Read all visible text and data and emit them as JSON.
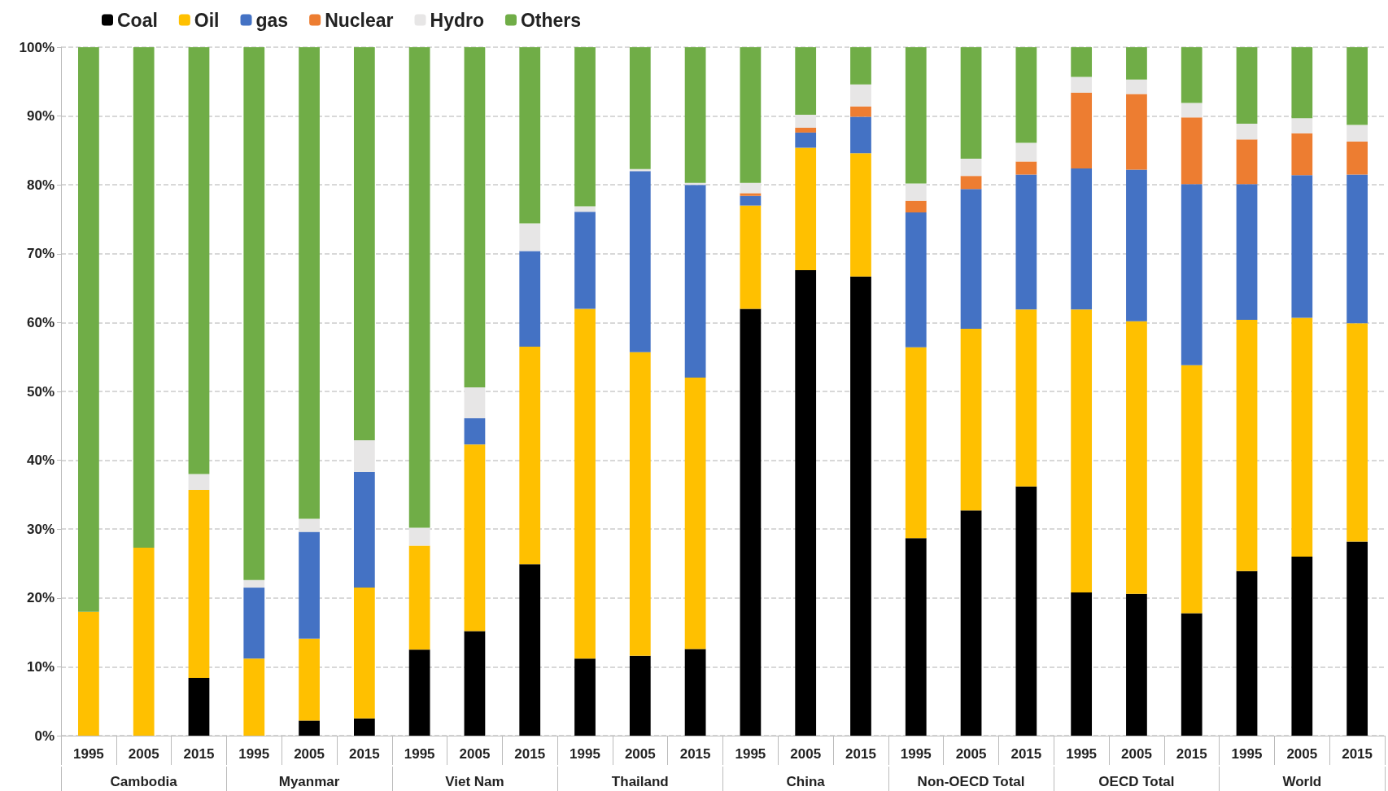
{
  "chart_data": {
    "type": "bar",
    "stacked": true,
    "categories": [
      "1995",
      "2005",
      "2015",
      "1995",
      "2005",
      "2015",
      "1995",
      "2005",
      "2015",
      "1995",
      "2005",
      "2015",
      "1995",
      "2005",
      "2015",
      "1995",
      "2005",
      "2015",
      "1995",
      "2005",
      "2015",
      "1995",
      "2005",
      "2015"
    ],
    "annotations": [
      "Cambodia",
      "Myanmar",
      "Viet Nam",
      "Thailand",
      "China",
      "Non-OECD Total",
      "OECD Total",
      "World"
    ],
    "series": [
      {
        "name": "Coal",
        "color": "#000000",
        "values": [
          0,
          0,
          8.4,
          0,
          2.2,
          2.5,
          12.5,
          15.2,
          24.9,
          11.2,
          11.6,
          12.6,
          62.0,
          67.6,
          66.7,
          28.7,
          32.7,
          36.2,
          20.8,
          20.6,
          17.8,
          23.9,
          26.0,
          28.2
        ]
      },
      {
        "name": "Oil",
        "color": "#ffc000",
        "values": [
          18.0,
          27.3,
          27.3,
          11.2,
          11.9,
          19.0,
          15.1,
          27.1,
          31.6,
          50.8,
          44.1,
          39.4,
          15.0,
          17.8,
          17.9,
          27.7,
          26.4,
          25.7,
          41.1,
          39.6,
          36.0,
          36.5,
          34.7,
          31.7
        ]
      },
      {
        "name": "gas",
        "color": "#4472c4",
        "values": [
          0,
          0,
          0,
          10.3,
          15.5,
          16.8,
          0,
          3.8,
          13.9,
          14.1,
          26.3,
          28.0,
          1.4,
          2.2,
          5.3,
          19.6,
          20.3,
          19.6,
          20.5,
          22.0,
          26.3,
          19.7,
          20.7,
          21.6
        ]
      },
      {
        "name": "Nuclear",
        "color": "#ed7d31",
        "values": [
          0,
          0,
          0,
          0,
          0,
          0,
          0,
          0,
          0,
          0,
          0,
          0,
          0.4,
          0.7,
          1.5,
          1.7,
          1.9,
          1.9,
          11.0,
          11.0,
          9.7,
          6.5,
          6.1,
          4.8
        ]
      },
      {
        "name": "Hydro",
        "color": "#e7e6e6",
        "values": [
          0,
          0,
          2.3,
          1.1,
          1.9,
          4.6,
          2.6,
          4.5,
          4.0,
          0.8,
          0.3,
          0.3,
          1.5,
          1.9,
          3.2,
          2.5,
          2.5,
          2.7,
          2.3,
          2.1,
          2.1,
          2.3,
          2.2,
          2.4
        ]
      },
      {
        "name": "Others",
        "color": "#70ad47",
        "values": [
          82.0,
          72.7,
          62.0,
          77.4,
          68.5,
          57.1,
          69.8,
          49.4,
          25.6,
          23.1,
          17.7,
          19.7,
          19.7,
          9.8,
          5.4,
          19.8,
          16.2,
          13.9,
          4.3,
          4.7,
          8.1,
          11.1,
          10.3,
          11.3
        ]
      }
    ],
    "ylim": [
      0,
      100
    ],
    "yticks": [
      {
        "value": 0,
        "label": "0%"
      },
      {
        "value": 10,
        "label": "10%"
      },
      {
        "value": 20,
        "label": "20%"
      },
      {
        "value": 30,
        "label": "30%"
      },
      {
        "value": 40,
        "label": "40%"
      },
      {
        "value": 50,
        "label": "50%"
      },
      {
        "value": 60,
        "label": "60%"
      },
      {
        "value": 70,
        "label": "70%"
      },
      {
        "value": 80,
        "label": "80%"
      },
      {
        "value": 90,
        "label": "90%"
      },
      {
        "value": 100,
        "label": "100%"
      }
    ],
    "grid": "y",
    "legend": "top left"
  }
}
